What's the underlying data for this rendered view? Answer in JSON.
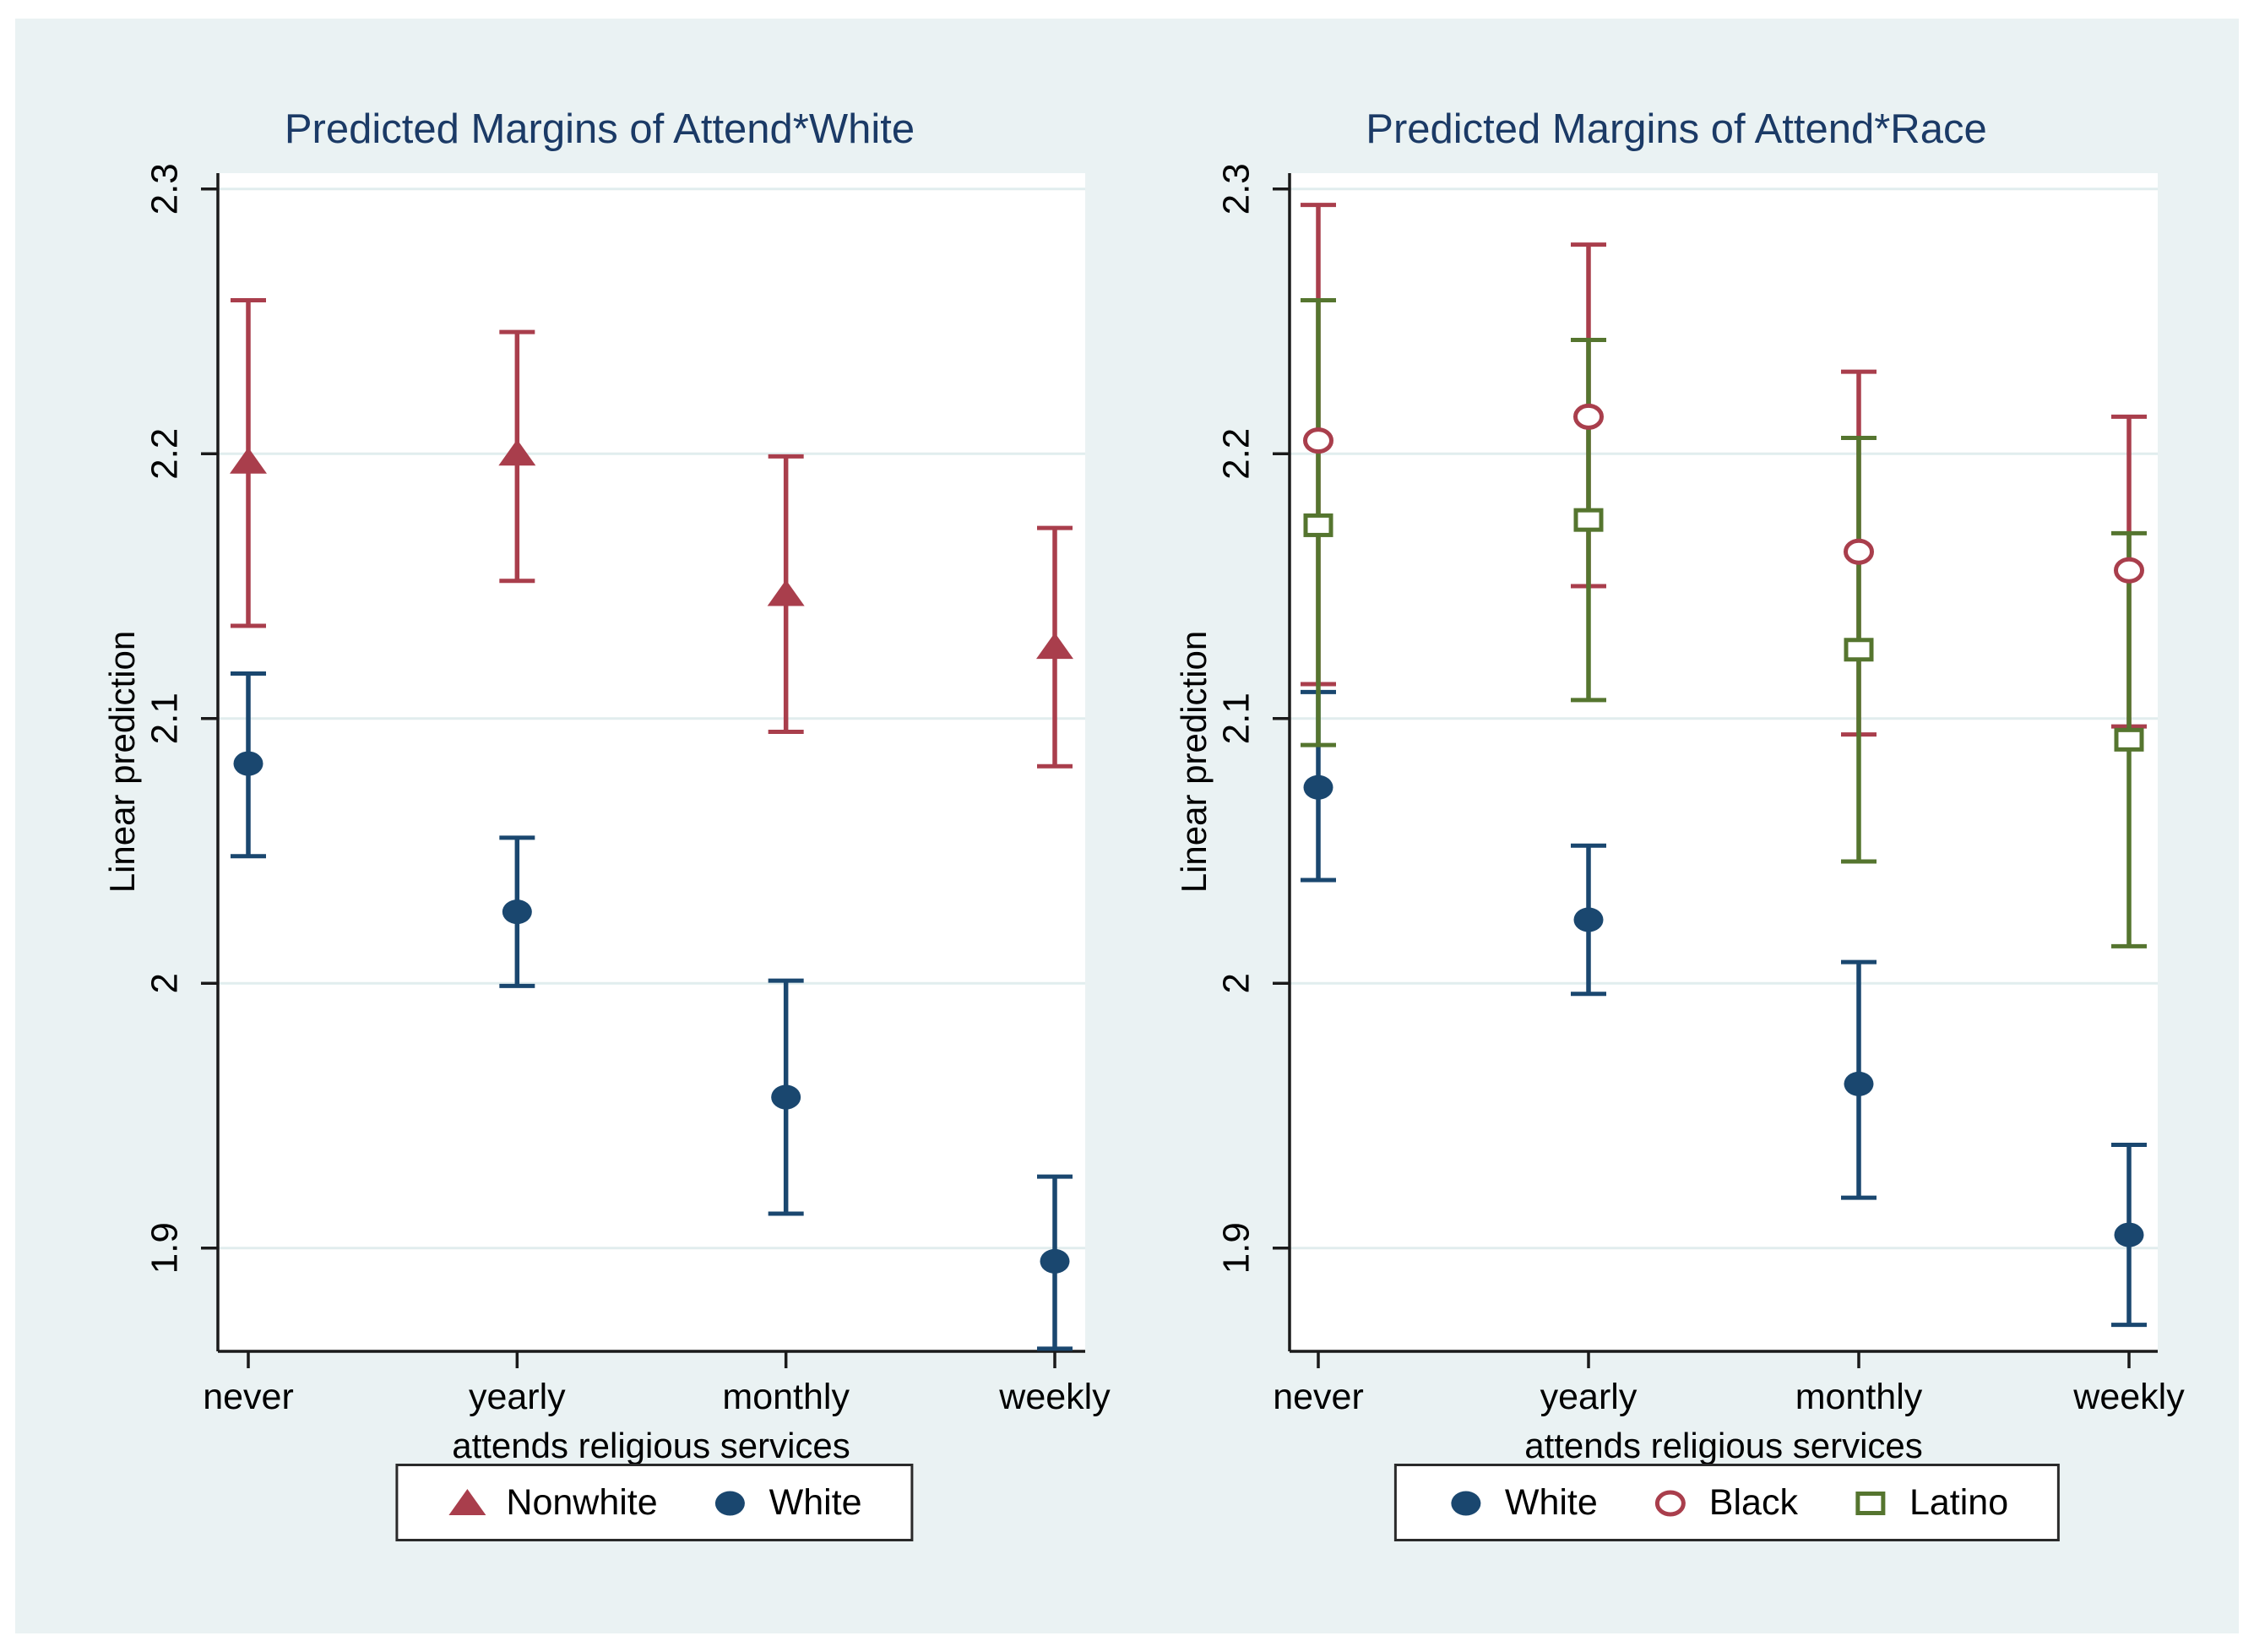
{
  "figure": {
    "background_color": "#ffffff",
    "canvas_color": "#eaf2f3",
    "title_color": "#1b3a66",
    "axis_color": "#1a1a1a",
    "gridline_color": "#e1edee",
    "text_color": "#000000"
  },
  "chart_data": [
    {
      "type": "scatter",
      "title": "Predicted Margins of Attend*White",
      "xlabel": "attends religious services",
      "ylabel": "Linear prediction",
      "categories": [
        "never",
        "yearly",
        "monthly",
        "weekly"
      ],
      "ylim": [
        1.861,
        2.306
      ],
      "yticks": [
        1.9,
        2,
        2.1,
        2.2,
        2.3
      ],
      "ytick_labels": [
        "1.9",
        "2",
        "2.1",
        "2.2",
        "2.3"
      ],
      "grid": true,
      "legend_position": "bottom-center",
      "series": [
        {
          "name": "Nonwhite",
          "marker": "triangle",
          "fill": "solid",
          "color": "#a93e4c",
          "values": [
            2.197,
            2.2,
            2.147,
            2.127
          ],
          "ci_low": [
            2.135,
            2.152,
            2.095,
            2.082
          ],
          "ci_high": [
            2.258,
            2.246,
            2.199,
            2.172
          ]
        },
        {
          "name": "White",
          "marker": "circle",
          "fill": "solid",
          "color": "#1a476f",
          "values": [
            2.083,
            2.027,
            1.957,
            1.895
          ],
          "ci_low": [
            2.048,
            1.999,
            1.913,
            1.862
          ],
          "ci_high": [
            2.117,
            2.055,
            2.001,
            1.927
          ]
        }
      ]
    },
    {
      "type": "scatter",
      "title": "Predicted Margins of Attend*Race",
      "xlabel": "attends religious services",
      "ylabel": "Linear prediction",
      "categories": [
        "never",
        "yearly",
        "monthly",
        "weekly"
      ],
      "ylim": [
        1.861,
        2.306
      ],
      "yticks": [
        1.9,
        2,
        2.1,
        2.2,
        2.3
      ],
      "ytick_labels": [
        "1.9",
        "2",
        "2.1",
        "2.2",
        "2.3"
      ],
      "grid": true,
      "legend_position": "bottom-center",
      "series": [
        {
          "name": "White",
          "marker": "circle",
          "fill": "solid",
          "color": "#1a476f",
          "values": [
            2.074,
            2.024,
            1.962,
            1.905
          ],
          "ci_low": [
            2.039,
            1.996,
            1.919,
            1.871
          ],
          "ci_high": [
            2.11,
            2.052,
            2.008,
            1.939
          ]
        },
        {
          "name": "Black",
          "marker": "circle",
          "fill": "open",
          "color": "#a93e4c",
          "values": [
            2.205,
            2.214,
            2.163,
            2.156
          ],
          "ci_low": [
            2.113,
            2.15,
            2.094,
            2.097
          ],
          "ci_high": [
            2.294,
            2.279,
            2.231,
            2.214
          ]
        },
        {
          "name": "Latino",
          "marker": "square",
          "fill": "open",
          "color": "#55752f",
          "values": [
            2.173,
            2.175,
            2.126,
            2.092
          ],
          "ci_low": [
            2.09,
            2.107,
            2.046,
            2.014
          ],
          "ci_high": [
            2.258,
            2.243,
            2.206,
            2.17
          ]
        }
      ]
    }
  ]
}
